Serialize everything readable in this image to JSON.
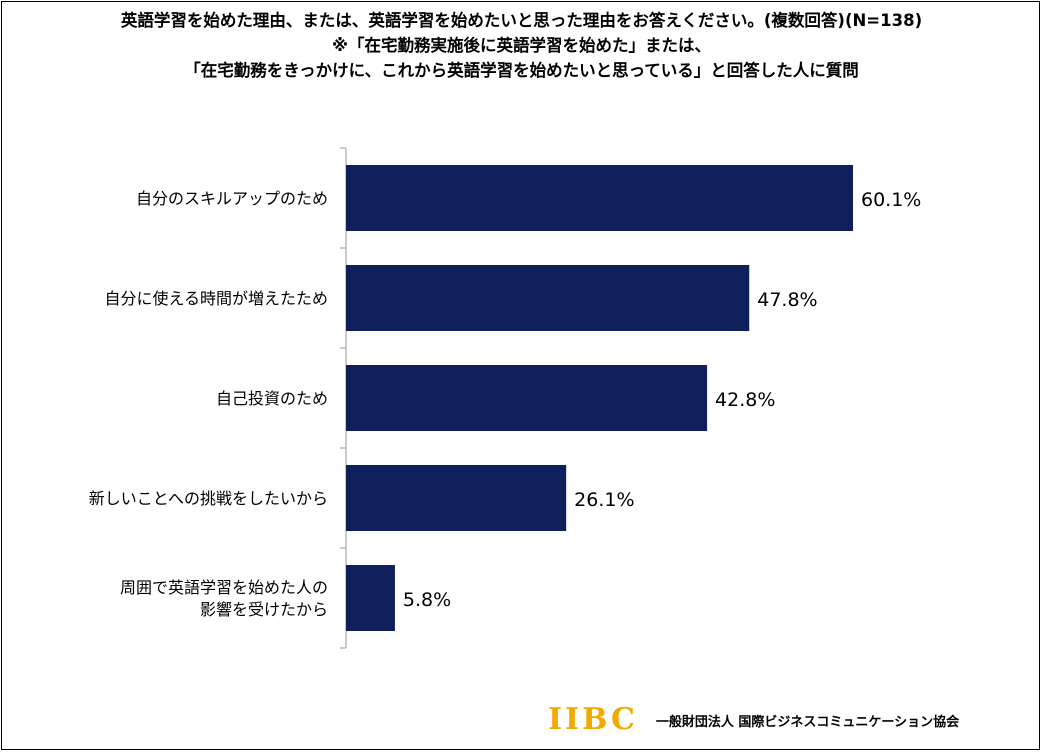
{
  "chart_data": {
    "type": "bar",
    "orientation": "horizontal",
    "title_lines": [
      "英語学習を始めた理由、または、英語学習を始めたいと思った理由をお答えください。(複数回答)(N=138)",
      "※「在宅勤務実施後に英語学習を始めた」または、",
      "「在宅勤務をきっかけに、これから英語学習を始めたいと思っている」と回答した人に質問"
    ],
    "categories": [
      "自分のスキルアップのため",
      "自分に使える時間が増えたため",
      "自己投資のため",
      "新しいことへの挑戦をしたいから",
      "周囲で英語学習を始めた人の\n影響を受けたから"
    ],
    "values": [
      60.1,
      47.8,
      42.8,
      26.1,
      5.8
    ],
    "data_labels": [
      "60.1%",
      "47.8%",
      "42.8%",
      "26.1%",
      "5.8%"
    ],
    "xlim": [
      0,
      70
    ],
    "grid": false,
    "bar_color": "#0f1f5c"
  },
  "footer": {
    "logo_text": "IIBC",
    "org_name": "一般財団法人 国際ビジネスコミュニケーション協会"
  }
}
